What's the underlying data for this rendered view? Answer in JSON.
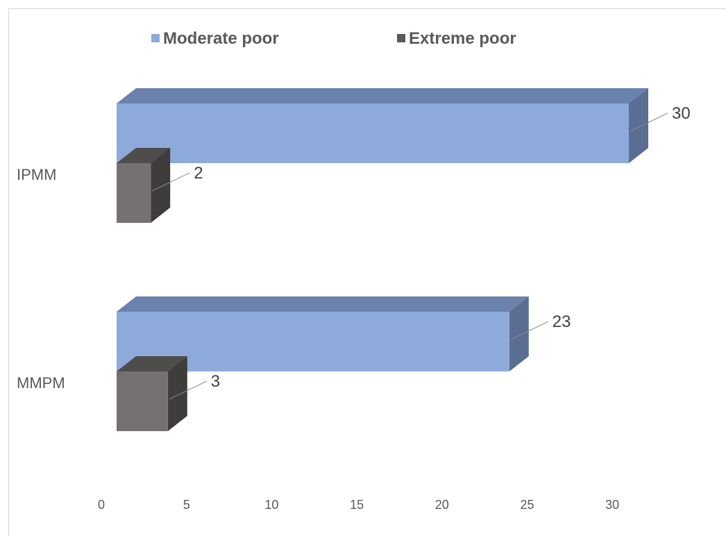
{
  "chart_data": {
    "type": "bar",
    "orientation": "horizontal",
    "style": "3d",
    "categories": [
      "IPMM",
      "MMPM"
    ],
    "series": [
      {
        "name": "Moderate poor",
        "values": [
          30,
          23
        ],
        "color": "#8eaadb",
        "top_color": "#6b82ad",
        "side_color": "#5a6d92"
      },
      {
        "name": "Extreme poor",
        "values": [
          2,
          3
        ],
        "color": "#767171",
        "top_color": "#4f4c4c",
        "side_color": "#3f3c3c"
      }
    ],
    "x_ticks": [
      "0",
      "5",
      "10",
      "15",
      "20",
      "25",
      "30"
    ],
    "xlim": [
      0,
      35
    ],
    "data_labels": true,
    "legend": {
      "position": "top"
    },
    "grid": false,
    "title": "",
    "xlabel": "",
    "ylabel": ""
  }
}
